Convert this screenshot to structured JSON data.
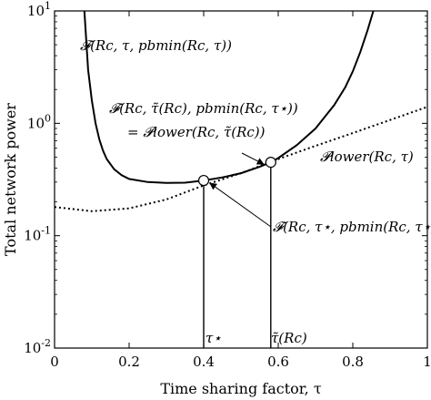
{
  "chart_data": {
    "type": "line",
    "xlabel": "Time sharing factor, τ",
    "ylabel": "Total network power",
    "xlim": [
      0,
      1
    ],
    "ylim": [
      0.01,
      10
    ],
    "yscale": "log",
    "grid": false,
    "x_ticks": [
      {
        "value": 0,
        "label": "0"
      },
      {
        "value": 0.2,
        "label": "0.2"
      },
      {
        "value": 0.4,
        "label": "0.4"
      },
      {
        "value": 0.6,
        "label": "0.6"
      },
      {
        "value": 0.8,
        "label": "0.8"
      },
      {
        "value": 1,
        "label": "1"
      }
    ],
    "y_ticks": [
      {
        "value": 0.01,
        "base": "10",
        "exp": "-2"
      },
      {
        "value": 0.1,
        "base": "10",
        "exp": "-1"
      },
      {
        "value": 1,
        "base": "10",
        "exp": "0"
      },
      {
        "value": 10,
        "base": "10",
        "exp": "1"
      }
    ],
    "series": [
      {
        "style": "solid",
        "x": [
          0.08,
          0.09,
          0.1,
          0.11,
          0.12,
          0.13,
          0.14,
          0.16,
          0.18,
          0.2,
          0.25,
          0.3,
          0.35,
          0.4,
          0.45,
          0.5,
          0.55,
          0.58,
          0.6,
          0.65,
          0.7,
          0.75,
          0.78,
          0.8,
          0.82,
          0.84,
          0.855
        ],
        "y": [
          10,
          3.0,
          1.6,
          1.0,
          0.72,
          0.57,
          0.48,
          0.39,
          0.345,
          0.32,
          0.3,
          0.295,
          0.296,
          0.31,
          0.33,
          0.36,
          0.41,
          0.45,
          0.49,
          0.64,
          0.9,
          1.45,
          2.1,
          2.9,
          4.3,
          6.8,
          10
        ]
      },
      {
        "style": "dotted",
        "x": [
          0,
          0.1,
          0.2,
          0.3,
          0.4,
          0.5,
          0.6,
          0.7,
          0.8,
          0.9,
          1.0
        ],
        "y": [
          0.18,
          0.165,
          0.175,
          0.21,
          0.28,
          0.36,
          0.48,
          0.63,
          0.82,
          1.07,
          1.4
        ]
      }
    ],
    "markers": [
      {
        "name": "optimal-point",
        "x": 0.4,
        "y": 0.31
      },
      {
        "name": "tilde-point",
        "x": 0.58,
        "y": 0.45
      }
    ],
    "vlines": [
      {
        "x": 0.4,
        "y_top": 0.31
      },
      {
        "x": 0.58,
        "y_top": 0.45
      }
    ],
    "annotations": [
      {
        "id": "curve-upper",
        "text": "𝓕(Rc, τ, pbmin(Rc, τ))"
      },
      {
        "id": "tilde-line1",
        "text": "𝓕(Rc, τ̃(Rc), pbmin(Rc, τ⋆))"
      },
      {
        "id": "tilde-line2",
        "text": "= 𝓟lower(Rc, τ̃(Rc))"
      },
      {
        "id": "lower",
        "text": "𝓟lower(Rc, τ)"
      },
      {
        "id": "star",
        "text": "𝓕(Rc, τ⋆, pbmin(Rc, τ⋆))"
      },
      {
        "id": "tau-star",
        "text": "τ⋆"
      },
      {
        "id": "tau-tilde",
        "text": "τ̃(Rc)"
      }
    ]
  }
}
